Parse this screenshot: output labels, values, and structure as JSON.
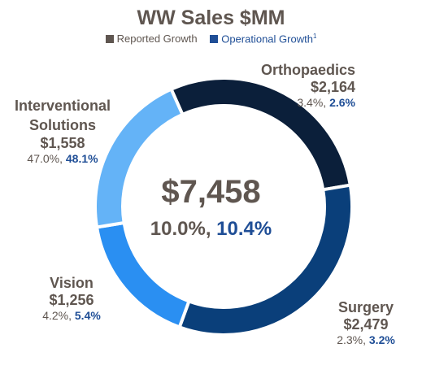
{
  "chart_data": {
    "type": "pie",
    "style": "donut",
    "title": "WW Sales $MM",
    "legend": [
      {
        "label": "Reported Growth",
        "color": "#5f5650"
      },
      {
        "label": "Operational Growth",
        "superscript": "1",
        "color": "#1f4e96"
      }
    ],
    "legend_position": "top",
    "total": {
      "value": "$7,458",
      "reported": "10.0%",
      "operational": "10.4%"
    },
    "series": [
      {
        "segments": [
          {
            "label": "Orthopaedics",
            "value": 2164,
            "display": "$2,164",
            "reported": "3.4%",
            "operational": "2.6%",
            "color": "#0b1f3a"
          },
          {
            "label": "Surgery",
            "value": 2479,
            "display": "$2,479",
            "reported": "2.3%",
            "operational": "3.2%",
            "color": "#0a3f7a"
          },
          {
            "label": "Vision",
            "value": 1256,
            "display": "$1,256",
            "reported": "4.2%",
            "operational": "5.4%",
            "color": "#2a8ff2"
          },
          {
            "label": "Interventional Solutions",
            "value": 1558,
            "display": "$1,558",
            "reported": "47.0%",
            "operational": "48.1%",
            "color": "#64b3f7"
          }
        ]
      }
    ]
  }
}
